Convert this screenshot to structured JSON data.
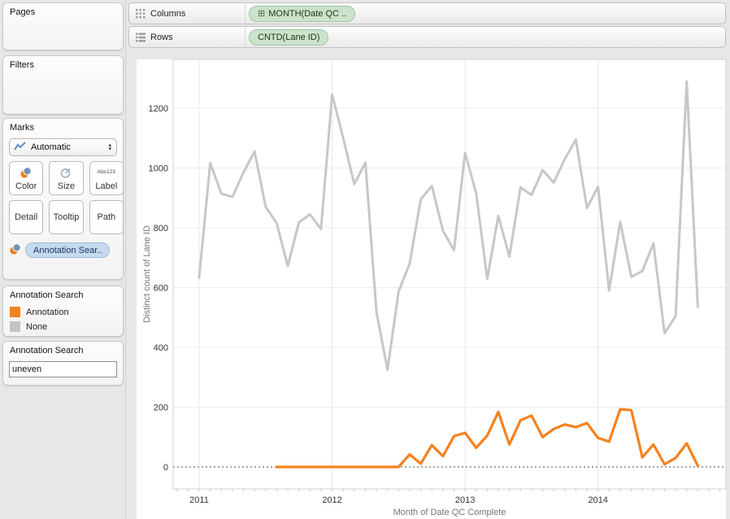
{
  "sidebar": {
    "pages": {
      "title": "Pages"
    },
    "filters": {
      "title": "Filters"
    },
    "marks": {
      "title": "Marks",
      "mark_type": "Automatic",
      "buttons": {
        "color": "Color",
        "size": "Size",
        "label": "Label",
        "detail": "Detail",
        "tooltip": "Tooltip",
        "path": "Path"
      },
      "label_icon_line1": "Abc",
      "label_icon_line2": "123",
      "pill": "Annotation Sear.."
    },
    "legend": {
      "title": "Annotation Search",
      "items": [
        {
          "label": "Annotation",
          "color": "#f6821f"
        },
        {
          "label": "None",
          "color": "#c4c4c4"
        }
      ]
    },
    "parameter": {
      "title": "Annotation Search",
      "value": "uneven"
    }
  },
  "shelves": {
    "columns": {
      "label": "Columns",
      "pill": "MONTH(Date QC .."
    },
    "rows": {
      "label": "Rows",
      "pill": "CNTD(Lane ID)"
    }
  },
  "chart_data": {
    "type": "line",
    "xlabel": "Month of Date QC Complete",
    "ylabel": "Distinct count of Lane ID",
    "ylim": [
      0,
      1300
    ],
    "yticks": [
      0,
      200,
      400,
      600,
      800,
      1000,
      1200
    ],
    "year_labels": [
      "2011",
      "2012",
      "2013",
      "2014"
    ],
    "grid": true,
    "zero_line": "dotted",
    "legend_position": "left-panel",
    "months": [
      "2011-01",
      "2011-02",
      "2011-03",
      "2011-04",
      "2011-05",
      "2011-06",
      "2011-07",
      "2011-08",
      "2011-09",
      "2011-10",
      "2011-11",
      "2011-12",
      "2012-01",
      "2012-02",
      "2012-03",
      "2012-04",
      "2012-05",
      "2012-06",
      "2012-07",
      "2012-08",
      "2012-09",
      "2012-10",
      "2012-11",
      "2012-12",
      "2013-01",
      "2013-02",
      "2013-03",
      "2013-04",
      "2013-05",
      "2013-06",
      "2013-07",
      "2013-08",
      "2013-09",
      "2013-10",
      "2013-11",
      "2013-12",
      "2014-01",
      "2014-02",
      "2014-03",
      "2014-04",
      "2014-05",
      "2014-06",
      "2014-07",
      "2014-08",
      "2014-09",
      "2014-10"
    ],
    "series": [
      {
        "name": "None",
        "color": "#c7c7c7",
        "values": [
          633,
          1017,
          914,
          903,
          985,
          1055,
          870,
          815,
          672,
          818,
          845,
          796,
          1246,
          1100,
          946,
          1018,
          518,
          325,
          586,
          681,
          895,
          940,
          790,
          725,
          1050,
          915,
          629,
          840,
          703,
          935,
          910,
          993,
          951,
          1030,
          1095,
          866,
          937,
          590,
          820,
          636,
          655,
          748,
          447,
          505,
          1289,
          536
        ]
      },
      {
        "name": "Annotation",
        "color": "#f6821f",
        "values": [
          null,
          null,
          null,
          null,
          null,
          null,
          null,
          0,
          0,
          0,
          0,
          0,
          0,
          0,
          0,
          0,
          0,
          0,
          0,
          42,
          11,
          73,
          36,
          103,
          114,
          64,
          105,
          184,
          75,
          156,
          172,
          100,
          127,
          142,
          133,
          147,
          97,
          85,
          193,
          190,
          32,
          75,
          9,
          30,
          79,
          4
        ]
      }
    ]
  }
}
